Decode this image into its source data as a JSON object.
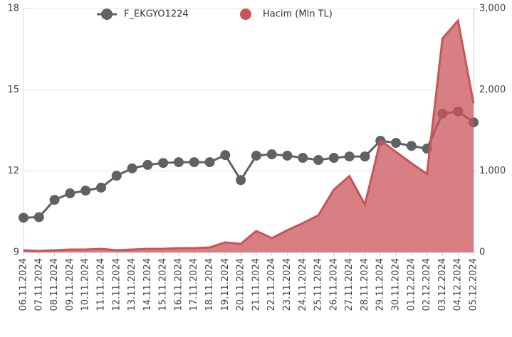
{
  "chart_data": {
    "type": "line-area",
    "categories": [
      "06.11.2024",
      "07.11.2024",
      "08.11.2024",
      "09.11.2024",
      "10.11.2024",
      "11.11.2024",
      "12.11.2024",
      "13.11.2024",
      "14.11.2024",
      "15.11.2024",
      "16.11.2024",
      "17.11.2024",
      "18.11.2024",
      "19.11.2024",
      "20.11.2024",
      "21.11.2024",
      "22.11.2024",
      "23.11.2024",
      "24.11.2024",
      "25.11.2024",
      "26.11.2024",
      "27.11.2024",
      "28.11.2024",
      "29.11.2024",
      "30.11.2024",
      "01.12.2024",
      "02.12.2024",
      "03.12.2024",
      "04.12.2024",
      "05.12.2024"
    ],
    "series": [
      {
        "name": "F_EKGYO1224",
        "color": "#5f6166",
        "type": "line",
        "values": [
          10.28,
          10.3,
          10.94,
          11.18,
          11.28,
          11.39,
          11.83,
          12.1,
          12.23,
          12.3,
          12.33,
          12.33,
          12.33,
          12.59,
          11.67,
          12.57,
          12.62,
          12.57,
          12.49,
          12.41,
          12.49,
          12.54,
          12.54,
          13.12,
          13.04,
          12.93,
          12.83,
          14.12,
          14.2,
          13.8
        ]
      },
      {
        "name": "Hacim (Mln TL)",
        "color": "#c9545a",
        "type": "area",
        "axis": "y2",
        "values": [
          26,
          18,
          26,
          35,
          35,
          44,
          26,
          35,
          44,
          44,
          53,
          53,
          61,
          123,
          105,
          263,
          175,
          272,
          360,
          456,
          772,
          939,
          588,
          1377,
          1237,
          1096,
          965,
          2632,
          2851,
          1833
        ]
      }
    ],
    "ylim": [
      9,
      18
    ],
    "yticks": [
      9,
      12,
      15,
      18
    ],
    "y2lim": [
      0,
      3000
    ],
    "y2ticks": [
      0,
      {
        "value": 1000,
        "label": "1,000"
      },
      {
        "value": 2000,
        "label": "2,000"
      },
      {
        "value": 3000,
        "label": "3,000"
      }
    ],
    "grid": true,
    "legend": "top"
  }
}
